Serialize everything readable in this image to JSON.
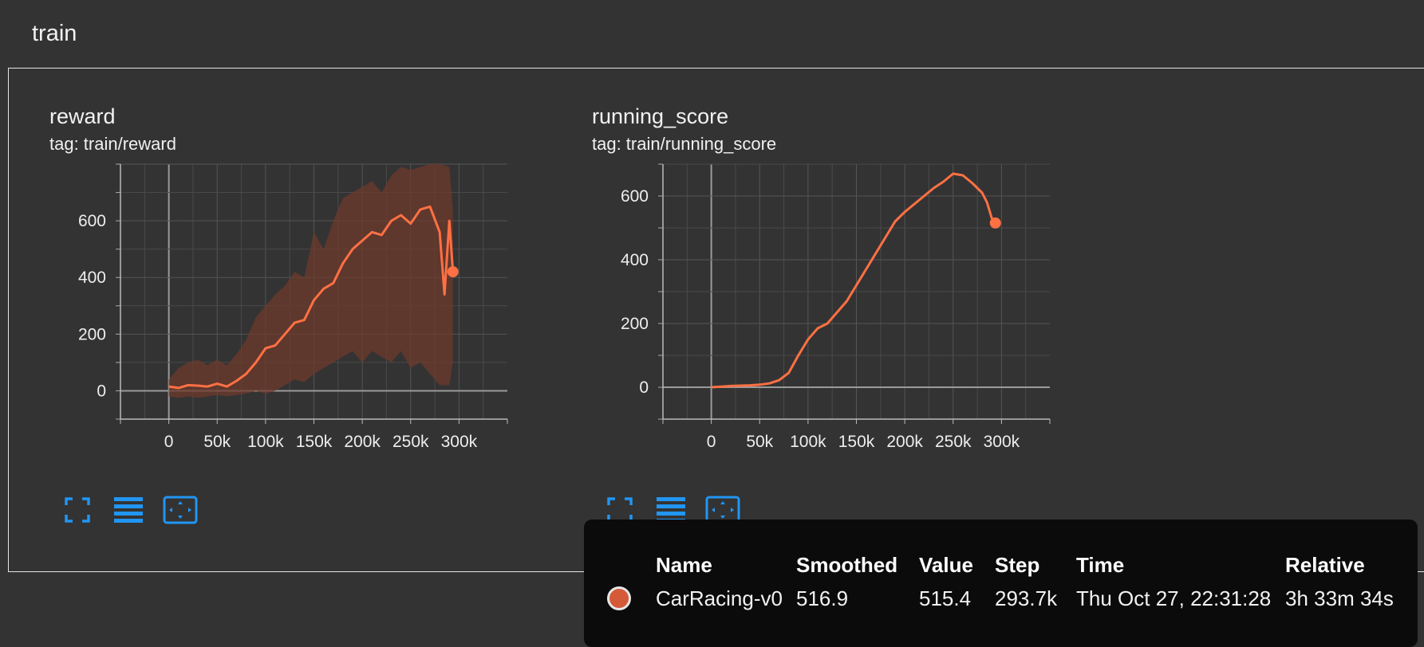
{
  "header": {
    "title": "train"
  },
  "colors": {
    "series": "#ff7043",
    "raw": "#6d3a2c",
    "background": "#333333",
    "accent": "#2196f3"
  },
  "cards": [
    {
      "title": "reward",
      "tag": "tag: train/reward",
      "chart_data": {
        "type": "line",
        "title": "reward",
        "x_ticks": [
          "0",
          "50k",
          "100k",
          "150k",
          "200k",
          "250k",
          "300k"
        ],
        "y_ticks": [
          "0",
          "200",
          "400",
          "600"
        ],
        "xlim": [
          -50000,
          350000
        ],
        "ylim": [
          -100,
          800
        ],
        "grid": true,
        "series": [
          {
            "name": "CarRacing-v0",
            "smoothed": [
              [
                0,
                15
              ],
              [
                10000,
                10
              ],
              [
                20000,
                20
              ],
              [
                30000,
                18
              ],
              [
                40000,
                15
              ],
              [
                50000,
                25
              ],
              [
                60000,
                15
              ],
              [
                70000,
                35
              ],
              [
                80000,
                60
              ],
              [
                90000,
                100
              ],
              [
                100000,
                150
              ],
              [
                110000,
                160
              ],
              [
                120000,
                200
              ],
              [
                130000,
                240
              ],
              [
                140000,
                250
              ],
              [
                150000,
                320
              ],
              [
                160000,
                360
              ],
              [
                170000,
                380
              ],
              [
                180000,
                450
              ],
              [
                190000,
                500
              ],
              [
                200000,
                530
              ],
              [
                210000,
                560
              ],
              [
                220000,
                550
              ],
              [
                230000,
                600
              ],
              [
                240000,
                620
              ],
              [
                250000,
                590
              ],
              [
                260000,
                640
              ],
              [
                270000,
                650
              ],
              [
                280000,
                560
              ],
              [
                285000,
                340
              ],
              [
                290000,
                600
              ],
              [
                293700,
                420
              ]
            ],
            "raw_upper": [
              [
                0,
                40
              ],
              [
                10000,
                80
              ],
              [
                20000,
                100
              ],
              [
                30000,
                110
              ],
              [
                40000,
                90
              ],
              [
                50000,
                110
              ],
              [
                60000,
                90
              ],
              [
                70000,
                130
              ],
              [
                80000,
                180
              ],
              [
                90000,
                260
              ],
              [
                100000,
                300
              ],
              [
                110000,
                340
              ],
              [
                120000,
                370
              ],
              [
                130000,
                420
              ],
              [
                140000,
                400
              ],
              [
                150000,
                560
              ],
              [
                160000,
                500
              ],
              [
                170000,
                600
              ],
              [
                180000,
                680
              ],
              [
                190000,
                700
              ],
              [
                200000,
                720
              ],
              [
                210000,
                740
              ],
              [
                220000,
                700
              ],
              [
                230000,
                760
              ],
              [
                240000,
                790
              ],
              [
                250000,
                780
              ],
              [
                260000,
                790
              ],
              [
                270000,
                800
              ],
              [
                280000,
                800
              ],
              [
                290000,
                790
              ],
              [
                293700,
                640
              ]
            ],
            "raw_lower": [
              [
                0,
                -20
              ],
              [
                10000,
                -25
              ],
              [
                20000,
                -20
              ],
              [
                30000,
                -25
              ],
              [
                40000,
                -20
              ],
              [
                50000,
                -15
              ],
              [
                60000,
                -20
              ],
              [
                70000,
                -15
              ],
              [
                80000,
                -10
              ],
              [
                90000,
                0
              ],
              [
                100000,
                -10
              ],
              [
                110000,
                0
              ],
              [
                120000,
                20
              ],
              [
                130000,
                40
              ],
              [
                140000,
                30
              ],
              [
                150000,
                60
              ],
              [
                160000,
                80
              ],
              [
                170000,
                100
              ],
              [
                180000,
                120
              ],
              [
                190000,
                140
              ],
              [
                200000,
                100
              ],
              [
                210000,
                140
              ],
              [
                220000,
                120
              ],
              [
                230000,
                100
              ],
              [
                240000,
                140
              ],
              [
                250000,
                80
              ],
              [
                260000,
                100
              ],
              [
                270000,
                60
              ],
              [
                280000,
                20
              ],
              [
                290000,
                20
              ],
              [
                293700,
                100
              ]
            ]
          }
        ]
      }
    },
    {
      "title": "running_score",
      "tag": "tag: train/running_score",
      "chart_data": {
        "type": "line",
        "title": "running_score",
        "x_ticks": [
          "0",
          "50k",
          "100k",
          "150k",
          "200k",
          "250k",
          "300k"
        ],
        "y_ticks": [
          "0",
          "200",
          "400",
          "600"
        ],
        "xlim": [
          -50000,
          350000
        ],
        "ylim": [
          -100,
          700
        ],
        "grid": true,
        "series": [
          {
            "name": "CarRacing-v0",
            "smoothed": [
              [
                0,
                0
              ],
              [
                10000,
                2
              ],
              [
                20000,
                4
              ],
              [
                30000,
                5
              ],
              [
                40000,
                6
              ],
              [
                50000,
                8
              ],
              [
                60000,
                12
              ],
              [
                70000,
                22
              ],
              [
                80000,
                45
              ],
              [
                90000,
                100
              ],
              [
                100000,
                150
              ],
              [
                110000,
                185
              ],
              [
                120000,
                200
              ],
              [
                130000,
                235
              ],
              [
                140000,
                270
              ],
              [
                150000,
                320
              ],
              [
                160000,
                370
              ],
              [
                170000,
                420
              ],
              [
                180000,
                470
              ],
              [
                190000,
                520
              ],
              [
                200000,
                550
              ],
              [
                210000,
                575
              ],
              [
                220000,
                600
              ],
              [
                230000,
                625
              ],
              [
                240000,
                645
              ],
              [
                250000,
                670
              ],
              [
                260000,
                665
              ],
              [
                270000,
                640
              ],
              [
                280000,
                610
              ],
              [
                285000,
                580
              ],
              [
                290000,
                530
              ],
              [
                293700,
                515.4
              ]
            ]
          }
        ]
      }
    }
  ],
  "tooltip": {
    "headers": [
      "Name",
      "Smoothed",
      "Value",
      "Step",
      "Time",
      "Relative"
    ],
    "row": {
      "name": "CarRacing-v0",
      "smoothed": "516.9",
      "value": "515.4",
      "step": "293.7k",
      "time": "Thu Oct 27, 22:31:28",
      "relative": "3h 33m 34s"
    }
  }
}
